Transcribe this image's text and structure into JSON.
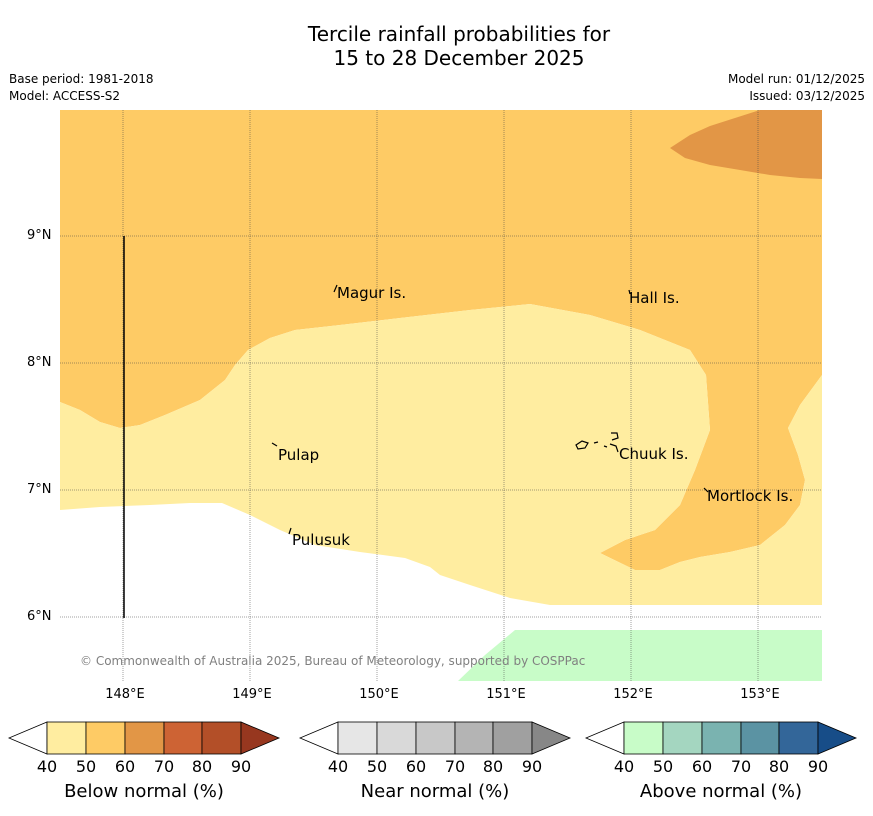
{
  "title_line1": "Tercile rainfall probabilities for",
  "title_line2": "15 to 28 December 2025",
  "base_period": "Base period: 1981-2018",
  "model": "Model: ACCESS-S2",
  "model_run": "Model run: 01/12/2025",
  "issued": "Issued: 03/12/2025",
  "lat_labels": [
    "9°N",
    "8°N",
    "7°N",
    "6°N"
  ],
  "lon_labels": [
    "148°E",
    "149°E",
    "150°E",
    "151°E",
    "152°E",
    "153°E"
  ],
  "places": [
    "Magur Is.",
    "Hall Is.",
    "Pulap",
    "Chuuk Is.",
    "Mortlock Is.",
    "Pulusuk"
  ],
  "copyright": "© Commonwealth of Australia 2025, Bureau of Meteorology, supported by COSPPac",
  "colorbars": [
    {
      "label": "Below normal (%)",
      "ticks": [
        "40",
        "50",
        "60",
        "70",
        "80",
        "90"
      ],
      "colors": [
        "#ffffff",
        "#ffeda0",
        "#fecb65",
        "#e29646",
        "#cd6334",
        "#b34f28",
        "#97371f"
      ]
    },
    {
      "label": "Near normal (%)",
      "ticks": [
        "40",
        "50",
        "60",
        "70",
        "80",
        "90"
      ],
      "colors": [
        "#ffffff",
        "#e6e6e6",
        "#d9d9d9",
        "#c8c8c8",
        "#b4b4b4",
        "#a0a0a0",
        "#878787"
      ]
    },
    {
      "label": "Above normal (%)",
      "ticks": [
        "40",
        "50",
        "60",
        "70",
        "80",
        "90"
      ],
      "colors": [
        "#ffffff",
        "#c8fcc8",
        "#a4d6c0",
        "#7ab3b0",
        "#5b93a3",
        "#336699",
        "#174d88"
      ]
    }
  ],
  "colors": {
    "below_50_60": "#fecb65",
    "below_40_50": "#ffeda0",
    "below_60_70": "#e29646",
    "above_40_50": "#c8fcc8"
  }
}
